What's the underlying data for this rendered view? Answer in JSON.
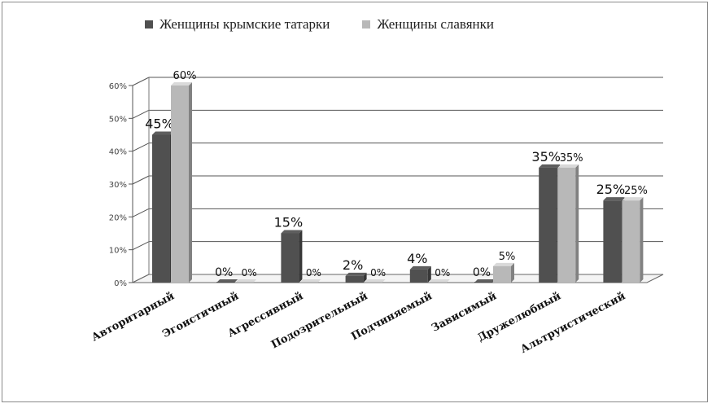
{
  "chart_data": {
    "type": "bar",
    "categories": [
      "Авторитарный",
      "Эгоистичный",
      "Агрессивный",
      "Подозрительный",
      "Подчиняемый",
      "Зависимый",
      "Дружелюбный",
      "Альтруистический"
    ],
    "series": [
      {
        "name": "Женщины крымские татарки",
        "values": [
          45,
          0,
          15,
          2,
          4,
          0,
          35,
          25
        ],
        "labels": [
          "45%",
          "0%",
          "15%",
          "2%",
          "4%",
          "0%",
          "35%",
          "25%"
        ],
        "color": "#505050"
      },
      {
        "name": "Женщины славянки",
        "values": [
          60,
          0,
          0,
          0,
          0,
          5,
          35,
          25
        ],
        "labels": [
          "60%",
          "0%",
          "0%",
          "0%",
          "0%",
          "5%",
          "35%",
          "25%"
        ],
        "color": "#b8b8b8"
      }
    ],
    "yticks": [
      "0%",
      "10%",
      "20%",
      "30%",
      "40%",
      "50%",
      "60%"
    ],
    "ylim": [
      0,
      60
    ],
    "grid": true,
    "legend_position": "top",
    "style": "3d-column"
  }
}
